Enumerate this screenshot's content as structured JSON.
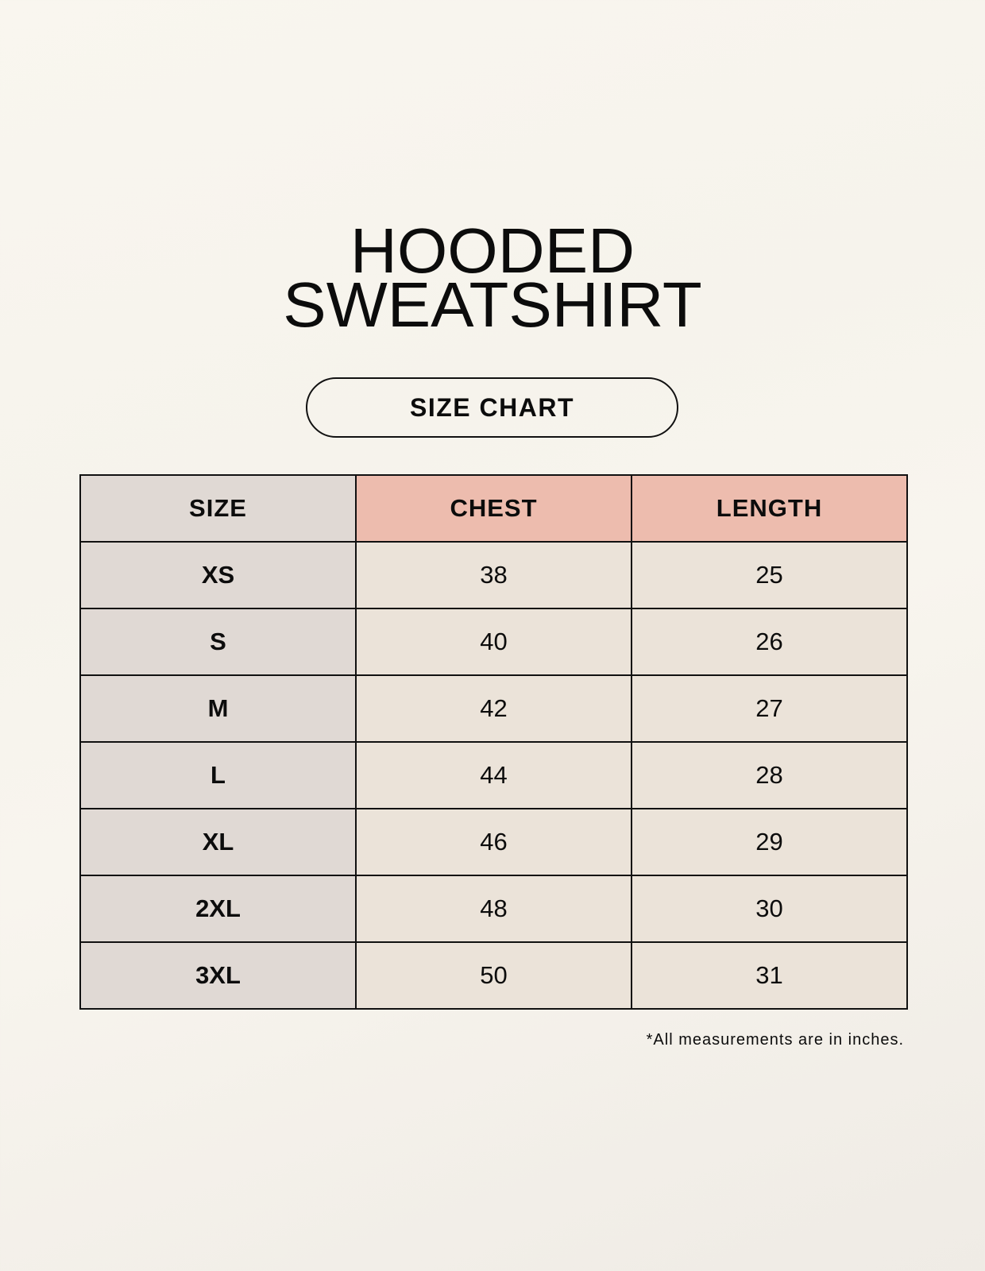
{
  "title": {
    "line1": "HOODED",
    "line2": "SWEATSHIRT"
  },
  "subtitle": "SIZE CHART",
  "table": {
    "headers": [
      "SIZE",
      "CHEST",
      "LENGTH"
    ],
    "rows": [
      [
        "XS",
        "38",
        "25"
      ],
      [
        "S",
        "40",
        "26"
      ],
      [
        "M",
        "42",
        "27"
      ],
      [
        "L",
        "44",
        "28"
      ],
      [
        "XL",
        "46",
        "29"
      ],
      [
        "2XL",
        "48",
        "30"
      ],
      [
        "3XL",
        "50",
        "31"
      ]
    ]
  },
  "note": "*All measurements are in inches.",
  "colors": {
    "size_column": "#e0d9d4",
    "measure_header": "#edbcae",
    "cell": "#ebe3d9"
  }
}
